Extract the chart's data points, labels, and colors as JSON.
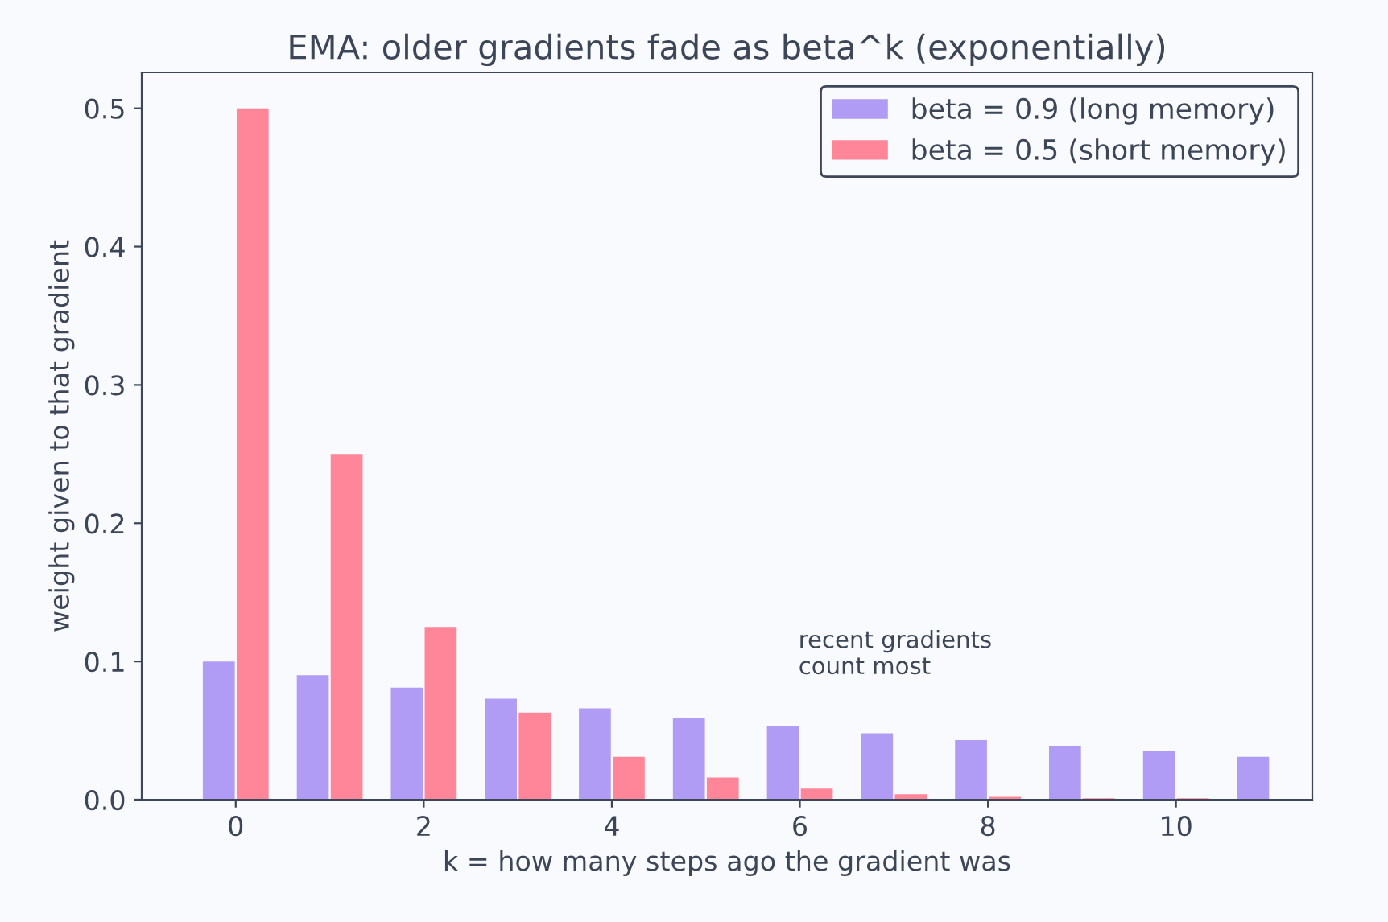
{
  "chart_data": {
    "type": "bar",
    "title": "EMA: older gradients fade as beta^k (exponentially)",
    "xlabel": "k = how many steps ago the gradient was",
    "ylabel": "weight given to that gradient",
    "x": [
      0,
      1,
      2,
      3,
      4,
      5,
      6,
      7,
      8,
      9,
      10,
      11
    ],
    "series": [
      {
        "name": "beta = 0.9 (long memory)",
        "color": "#b19cf5",
        "values": [
          0.1,
          0.09,
          0.081,
          0.073,
          0.066,
          0.059,
          0.053,
          0.048,
          0.043,
          0.039,
          0.035,
          0.031
        ]
      },
      {
        "name": "beta = 0.5 (short memory)",
        "color": "#ff8599",
        "values": [
          0.5,
          0.25,
          0.125,
          0.063,
          0.031,
          0.016,
          0.008,
          0.004,
          0.002,
          0.001,
          0.001,
          0.0
        ]
      }
    ],
    "xlim": [
      -1,
      11.45
    ],
    "xticks": [
      0,
      2,
      4,
      6,
      8,
      10
    ],
    "ylim": [
      0,
      0.526
    ],
    "yticks": [
      {
        "value": 0,
        "label": "0.0"
      },
      0.1,
      0.2,
      0.3,
      0.4,
      0.5
    ],
    "annotations": [
      "recent gradients\ncount most"
    ],
    "legend": "top right",
    "grid": false
  }
}
